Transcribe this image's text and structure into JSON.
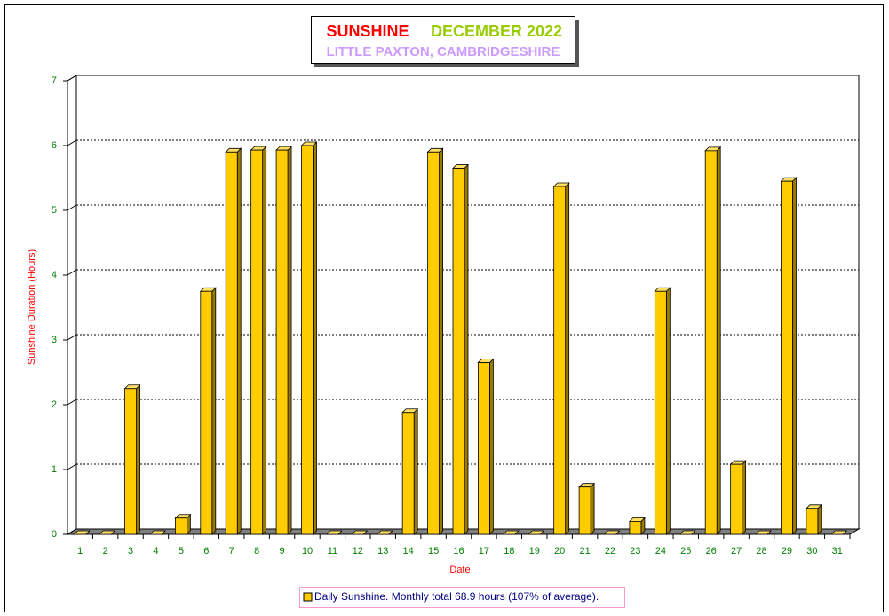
{
  "chart_data": {
    "type": "bar3d",
    "title": "SUNSHINE",
    "title_period": "DECEMBER 2022",
    "subtitle": "LITTLE PAXTON, CAMBRIDGESHIRE",
    "x_label": "Date",
    "y_label": "Sunshine Duration (Hours)",
    "categories": [
      "1",
      "2",
      "3",
      "4",
      "5",
      "6",
      "7",
      "8",
      "9",
      "10",
      "11",
      "12",
      "13",
      "14",
      "15",
      "16",
      "17",
      "18",
      "19",
      "20",
      "21",
      "22",
      "23",
      "24",
      "25",
      "26",
      "27",
      "28",
      "29",
      "30",
      "31"
    ],
    "series": [
      {
        "name": "Daily Sunshine. Monthly total 68.9 hours (107% of average).",
        "color": "#ffcc00",
        "values": [
          0,
          0,
          2.25,
          0,
          0.25,
          3.75,
          5.9,
          5.93,
          5.93,
          6.0,
          0,
          0,
          0,
          1.88,
          5.9,
          5.65,
          2.65,
          0,
          0,
          5.37,
          0.73,
          0,
          0.2,
          3.75,
          0,
          5.92,
          1.08,
          0,
          5.45,
          0.4,
          0
        ]
      }
    ],
    "ylim": [
      0,
      7
    ],
    "yticks": [
      0,
      1,
      2,
      3,
      4,
      5,
      6,
      7
    ],
    "grid": true
  }
}
